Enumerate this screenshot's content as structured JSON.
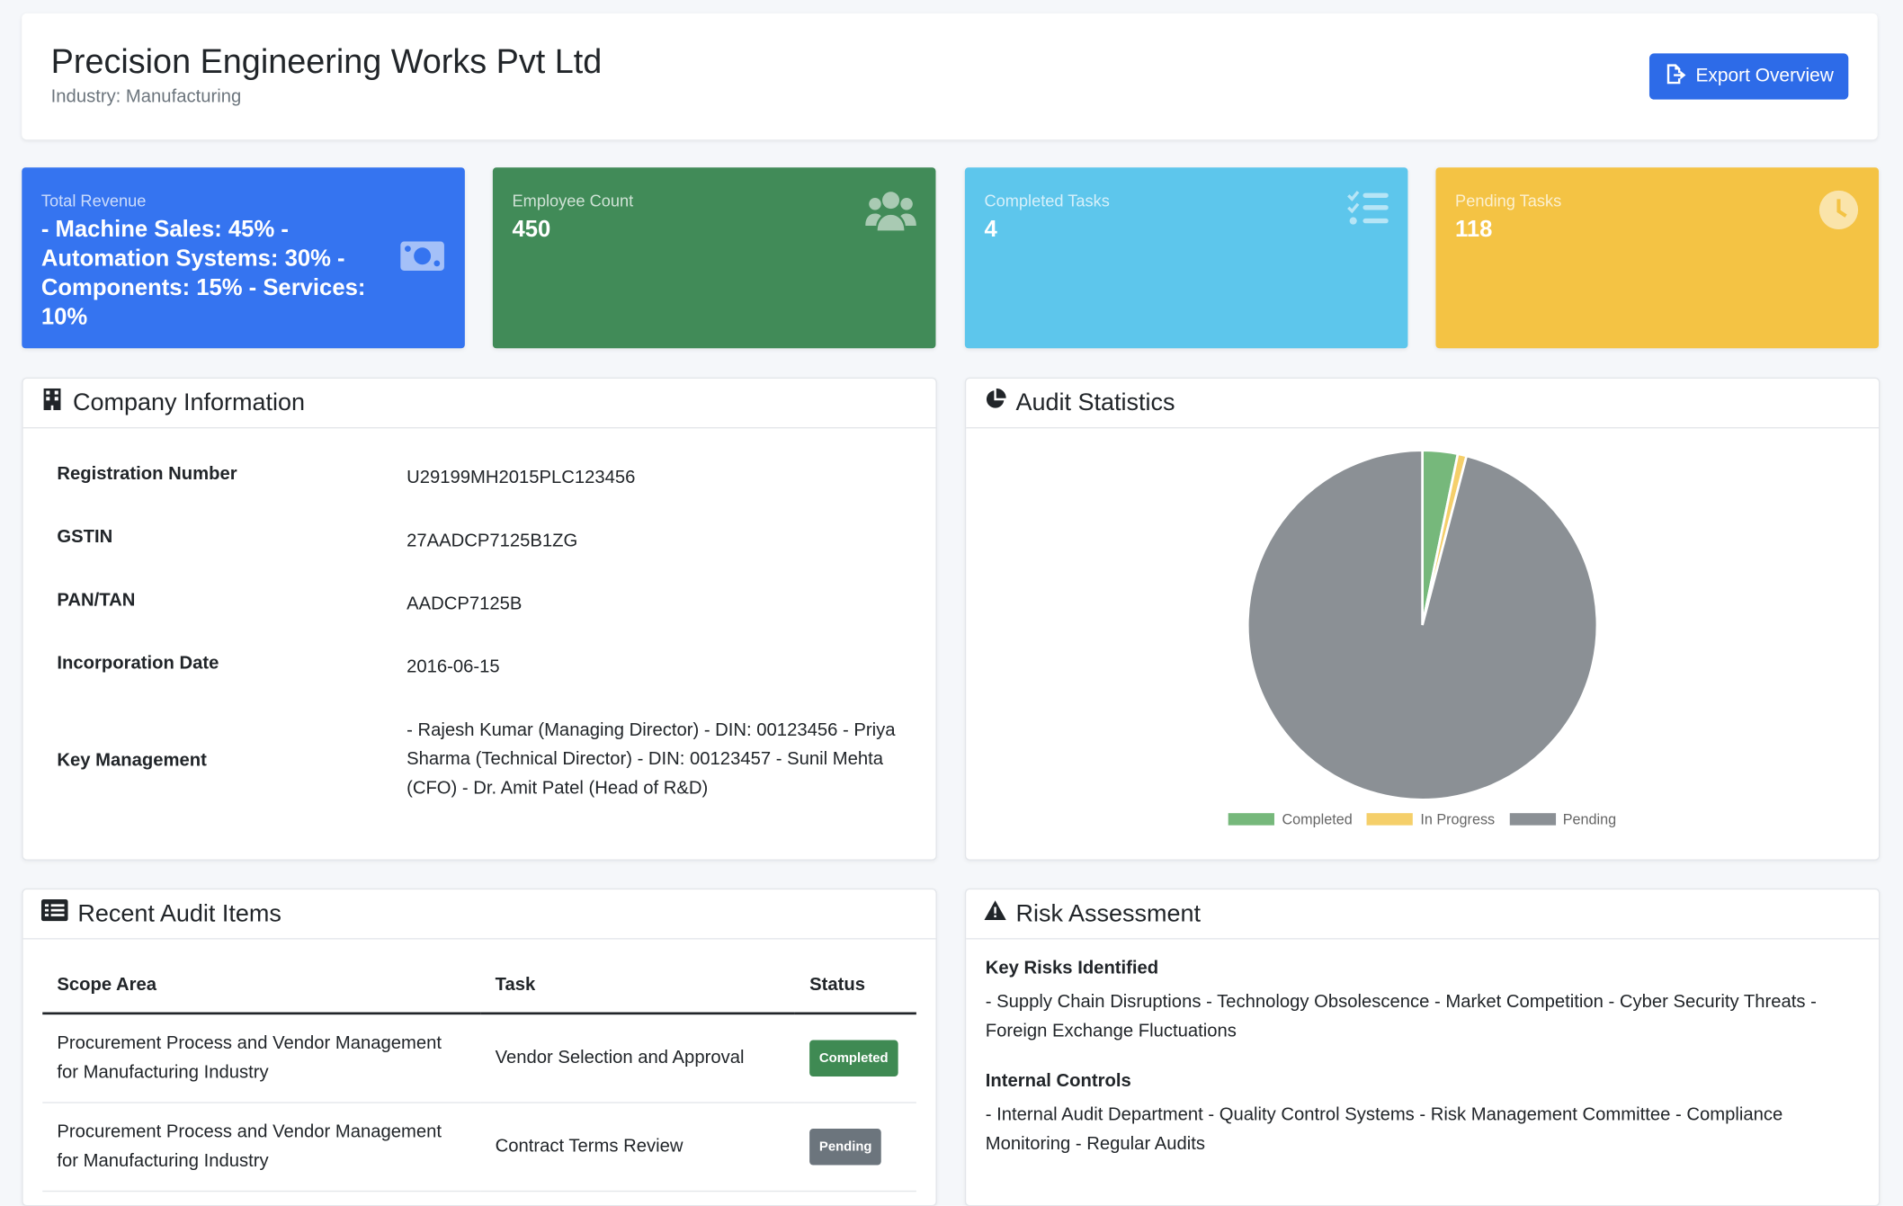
{
  "header": {
    "company_name": "Precision Engineering Works Pvt Ltd",
    "industry": "Industry: Manufacturing",
    "export_label": "Export Overview"
  },
  "stats": {
    "revenue": {
      "label": "Total Revenue",
      "value": "- Machine Sales: 45% - Automation Systems: 30% - Components: 15% - Services: 10%",
      "icon": "money-icon"
    },
    "employees": {
      "label": "Employee Count",
      "value": "450",
      "icon": "users-icon"
    },
    "completed": {
      "label": "Completed Tasks",
      "value": "4",
      "icon": "tasks-icon"
    },
    "pending": {
      "label": "Pending Tasks",
      "value": "118",
      "icon": "clock-icon"
    }
  },
  "company_info": {
    "title": "Company Information",
    "rows": [
      {
        "key": "Registration Number",
        "value": "U29199MH2015PLC123456"
      },
      {
        "key": "GSTIN",
        "value": "27AADCP7125B1ZG"
      },
      {
        "key": "PAN/TAN",
        "value": "AADCP7125B"
      },
      {
        "key": "Incorporation Date",
        "value": "2016-06-15"
      },
      {
        "key": "Key Management",
        "value": "- Rajesh Kumar (Managing Director) - DIN: 00123456 - Priya Sharma (Technical Director) - DIN: 00123457 - Sunil Mehta (CFO) - Dr. Amit Patel (Head of R&D)"
      }
    ]
  },
  "audit_stats": {
    "title": "Audit Statistics"
  },
  "chart_data": {
    "type": "pie",
    "categories": [
      "Completed",
      "In Progress",
      "Pending"
    ],
    "values": [
      4,
      1,
      118
    ],
    "colors": [
      "#76b87b",
      "#f5cf6a",
      "#8b9095"
    ],
    "legend": "bottom"
  },
  "recent_audit": {
    "title": "Recent Audit Items",
    "columns": [
      "Scope Area",
      "Task",
      "Status"
    ],
    "rows": [
      {
        "scope": "Procurement Process and Vendor Management for Manufacturing Industry",
        "task": "Vendor Selection and Approval",
        "status": "Completed"
      },
      {
        "scope": "Procurement Process and Vendor Management for Manufacturing Industry",
        "task": "Contract Terms Review",
        "status": "Pending"
      }
    ]
  },
  "risk": {
    "title": "Risk Assessment",
    "key_risks_title": "Key Risks Identified",
    "key_risks": "- Supply Chain Disruptions - Technology Obsolescence - Market Competition - Cyber Security Threats - Foreign Exchange Fluctuations",
    "controls_title": "Internal Controls",
    "controls": "- Internal Audit Department - Quality Control Systems - Risk Management Committee - Compliance Monitoring - Regular Audits"
  },
  "colors": {
    "primary": "#3574f0",
    "success": "#418b58",
    "info": "#5dc6ec",
    "warning": "#f4c344"
  }
}
